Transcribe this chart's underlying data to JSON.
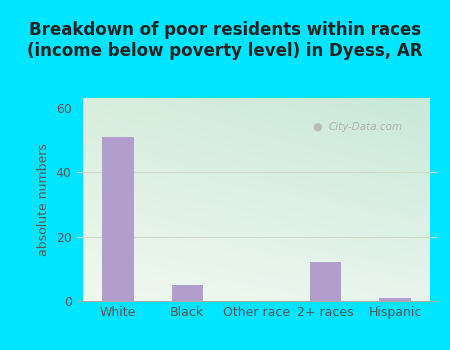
{
  "title": "Breakdown of poor residents within races\n(income below poverty level) in Dyess, AR",
  "categories": [
    "White",
    "Black",
    "Other race",
    "2+ races",
    "Hispanic"
  ],
  "values": [
    51,
    5,
    0,
    12,
    1
  ],
  "bar_color": "#b39dcc",
  "ylabel": "absolute numbers",
  "ylim": [
    0,
    63
  ],
  "yticks": [
    0,
    20,
    40,
    60
  ],
  "background_outer": "#00e5ff",
  "bg_color_topleft": "#d8eedc",
  "bg_color_topright": "#c8e8d8",
  "bg_color_bottomleft": "#e8f5e9",
  "bg_color_bottomright": "#dff0e8",
  "grid_color": "#d0d8c8",
  "title_fontsize": 12,
  "ylabel_fontsize": 9,
  "tick_fontsize": 9,
  "watermark_text": "City-Data.com"
}
